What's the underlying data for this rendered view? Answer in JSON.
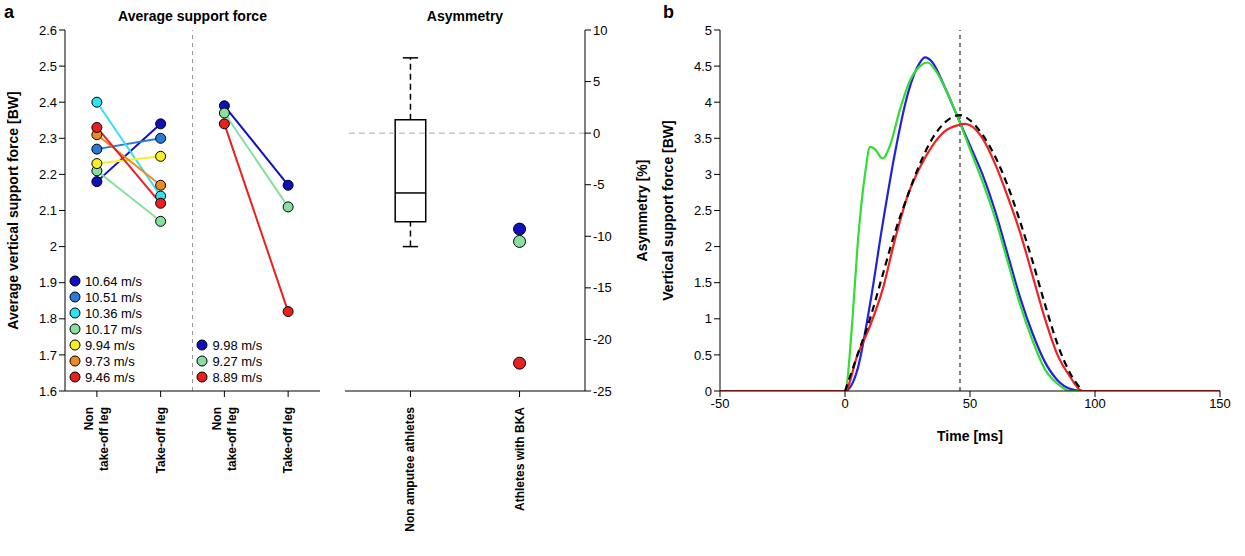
{
  "chart_data": [
    {
      "type": "line",
      "panel": "a",
      "title": "Average support force",
      "y_label": "Average vertical support force [BW]",
      "categories": [
        "Non take-off leg",
        "Take-off leg",
        "Non take-off leg",
        "Take-off leg"
      ],
      "ylim": [
        1.6,
        2.6
      ],
      "yticks": [
        1.6,
        1.7,
        1.8,
        1.9,
        2,
        2.1,
        2.2,
        2.3,
        2.4,
        2.5,
        2.6
      ],
      "marker": "circle",
      "legend": "lower left",
      "series": [
        {
          "name": "10.64 m/s",
          "color": "#1010c0",
          "values": [
            2.18,
            2.34,
            null,
            null
          ]
        },
        {
          "name": "10.51 m/s",
          "color": "#2a7ad8",
          "values": [
            2.27,
            2.3,
            null,
            null
          ]
        },
        {
          "name": "10.36 m/s",
          "color": "#33e0f0",
          "values": [
            2.4,
            2.14,
            null,
            null
          ]
        },
        {
          "name": "10.17 m/s",
          "color": "#88e0a0",
          "values": [
            2.21,
            2.07,
            null,
            null
          ]
        },
        {
          "name": "9.94 m/s",
          "color": "#f8f020",
          "values": [
            2.23,
            2.25,
            null,
            null
          ]
        },
        {
          "name": "9.73 m/s",
          "color": "#f08a20",
          "values": [
            2.31,
            2.17,
            null,
            null
          ]
        },
        {
          "name": "9.46 m/s",
          "color": "#e82020",
          "values": [
            2.33,
            2.12,
            null,
            null
          ]
        },
        {
          "name": "9.98 m/s",
          "color": "#1010c0",
          "values": [
            null,
            null,
            2.39,
            2.17
          ]
        },
        {
          "name": "9.27 m/s",
          "color": "#88e0a0",
          "values": [
            null,
            null,
            2.37,
            2.11
          ]
        },
        {
          "name": "8.89 m/s",
          "color": "#e82020",
          "values": [
            null,
            null,
            2.34,
            1.82
          ]
        }
      ]
    },
    {
      "type": "box",
      "title": "Asymmetry",
      "y_label": "Asymmetry [%]",
      "categories": [
        "Non amputee athletes",
        "Athletes with BKA"
      ],
      "ylim": [
        -25,
        10
      ],
      "yticks": [
        -25,
        -20,
        -15,
        -10,
        -5,
        0,
        5,
        10
      ],
      "box": {
        "min": -11,
        "q1": -8.6,
        "median": -5.8,
        "q3": 1.3,
        "max": 7.3
      },
      "points": {
        "values": [
          -9.3,
          -10.5,
          -22.3
        ],
        "colors": [
          "#1010c0",
          "#88e0a0",
          "#e82020"
        ]
      },
      "hline": 0
    },
    {
      "type": "line",
      "panel": "b",
      "x_label": "Time [ms]",
      "y_label": "Vertical support force [BW]",
      "xlim": [
        -50,
        150
      ],
      "xticks": [
        -50,
        0,
        50,
        100,
        150
      ],
      "ylim": [
        0,
        5
      ],
      "yticks": [
        0,
        0.5,
        1,
        1.5,
        2,
        2.5,
        3,
        3.5,
        4,
        4.5,
        5
      ],
      "vline": 46,
      "series": [
        {
          "color": "#2222dd",
          "line_style": "solid",
          "x": [
            -50,
            0,
            5,
            10,
            15,
            20,
            25,
            30,
            32,
            35,
            40,
            45,
            50,
            55,
            60,
            65,
            70,
            75,
            80,
            85,
            90,
            95,
            150
          ],
          "values": [
            0,
            0,
            0.3,
            1.2,
            2.3,
            3.3,
            4.1,
            4.55,
            4.62,
            4.55,
            4.2,
            3.8,
            3.4,
            3.0,
            2.5,
            1.9,
            1.3,
            0.8,
            0.4,
            0.15,
            0.03,
            0,
            0
          ]
        },
        {
          "color": "#33dd33",
          "line_style": "solid",
          "x": [
            -50,
            0,
            3,
            5,
            8,
            10,
            12,
            15,
            18,
            22,
            26,
            30,
            33,
            36,
            40,
            45,
            50,
            55,
            60,
            65,
            70,
            75,
            80,
            85,
            90,
            150
          ],
          "values": [
            0,
            0,
            1.0,
            2.0,
            3.0,
            3.38,
            3.35,
            3.22,
            3.4,
            3.9,
            4.3,
            4.5,
            4.55,
            4.45,
            4.2,
            3.8,
            3.35,
            2.9,
            2.4,
            1.8,
            1.2,
            0.7,
            0.3,
            0.1,
            0,
            0
          ]
        },
        {
          "color": "#ee2222",
          "line_style": "solid",
          "x": [
            -50,
            0,
            5,
            10,
            15,
            20,
            25,
            30,
            35,
            40,
            45,
            48,
            50,
            55,
            60,
            65,
            70,
            75,
            80,
            85,
            90,
            95,
            150
          ],
          "values": [
            0,
            0,
            0.5,
            0.9,
            1.4,
            2.1,
            2.7,
            3.1,
            3.4,
            3.6,
            3.68,
            3.7,
            3.68,
            3.5,
            3.15,
            2.7,
            2.2,
            1.6,
            1.0,
            0.5,
            0.2,
            0,
            0
          ]
        },
        {
          "color": "#000000",
          "line_style": "dashed",
          "x": [
            0,
            5,
            10,
            15,
            20,
            25,
            30,
            35,
            40,
            46,
            50,
            55,
            60,
            65,
            70,
            75,
            80,
            85,
            90,
            95
          ],
          "values": [
            0,
            0.5,
            1.0,
            1.6,
            2.2,
            2.7,
            3.15,
            3.5,
            3.72,
            3.82,
            3.75,
            3.55,
            3.25,
            2.85,
            2.35,
            1.8,
            1.2,
            0.65,
            0.25,
            0
          ]
        }
      ]
    }
  ]
}
